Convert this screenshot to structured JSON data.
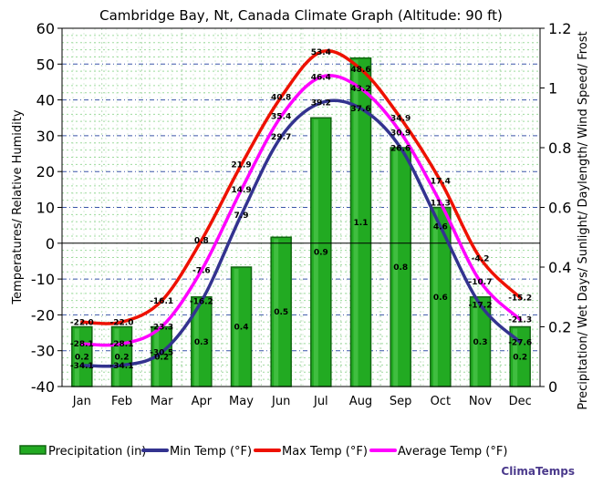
{
  "chart_data": {
    "type": "bar+line",
    "title": "Cambridge Bay, Nt, Canada Climate Graph (Altitude: 90 ft)",
    "categories": [
      "Jan",
      "Feb",
      "Mar",
      "Apr",
      "May",
      "Jun",
      "Jul",
      "Aug",
      "Sep",
      "Oct",
      "Nov",
      "Dec"
    ],
    "ylabel_left": "Temperatures/ Relative Humidity",
    "ylabel_right": "Precipitation/ Wet Days/ Sunlight/ Daylength/ Wind Speed/ Frost",
    "ylim_left": [
      -40,
      60
    ],
    "ylim_right": [
      0,
      1.2
    ],
    "yticks_left": [
      "60",
      "50",
      "40",
      "30",
      "20",
      "10",
      "0",
      "-10",
      "-20",
      "-30",
      "-40"
    ],
    "yticks_right": [
      "1.2",
      "1",
      "0.8",
      "0.6",
      "0.4",
      "0.2",
      "0"
    ],
    "precipitation": {
      "name": "Precipitation (in)",
      "values": [
        0.2,
        0.2,
        0.2,
        0.3,
        0.4,
        0.5,
        0.9,
        1.1,
        0.8,
        0.6,
        0.3,
        0.2
      ],
      "labels": [
        "0.2",
        "0.2",
        "0.2",
        "0.3",
        "0.4",
        "0.5",
        "0.9",
        "1.1",
        "0.8",
        "0.6",
        "0.3",
        "0.2"
      ],
      "color": "#22aa22"
    },
    "series": [
      {
        "name": "Min Temp (°F)",
        "color": "#33338f",
        "values": [
          -34.1,
          -34.1,
          -30.5,
          -16.2,
          7.9,
          29.7,
          39.2,
          37.6,
          26.6,
          4.6,
          -17.2,
          -27.6
        ],
        "labels": [
          "-34.1",
          "-34.1",
          "-30.5",
          "-16.2",
          "7.9",
          "29.7",
          "39.2",
          "37.6",
          "26.6",
          "4.6",
          "-17.2",
          "-27.6"
        ]
      },
      {
        "name": "Max Temp (°F)",
        "color": "#ee1100",
        "values": [
          -22,
          -22,
          -16.1,
          0.8,
          21.9,
          40.8,
          53.4,
          48.6,
          34.9,
          17.4,
          -4.2,
          -15.2
        ],
        "labels": [
          "-22.0",
          "-22.0",
          "-16.1",
          "0.8",
          "21.9",
          "40.8",
          "53.4",
          "48.6",
          "34.9",
          "17.4",
          "-4.2",
          "-15.2"
        ]
      },
      {
        "name": "Average Temp (°F)",
        "color": "#ff00ff",
        "values": [
          -28.1,
          -28.1,
          -23.3,
          -7.6,
          14.9,
          35.4,
          46.4,
          43.2,
          30.9,
          11.3,
          -10.7,
          -21.3
        ],
        "labels": [
          "-28.1",
          "-28.1",
          "-23.3",
          "-7.6",
          "14.9",
          "35.4",
          "46.4",
          "43.2",
          "30.9",
          "11.3",
          "-10.7",
          "-21.3"
        ]
      }
    ],
    "legend": [
      "Precipitation (in)",
      "Min Temp (°F)",
      "Max Temp (°F)",
      "Average Temp (°F)"
    ],
    "watermark": "ClimaTemps"
  }
}
